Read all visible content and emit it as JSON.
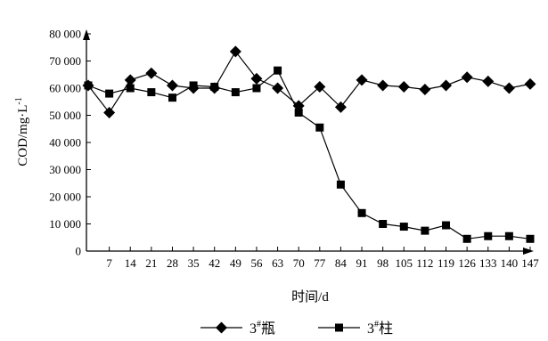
{
  "chart_data": {
    "type": "line",
    "title": "",
    "xlabel": "时间/d",
    "ylabel": "COD/mg·L",
    "ylabel_superscript": "-1",
    "ylim": [
      0,
      80000
    ],
    "yticks": [
      "0",
      "10 000",
      "20 000",
      "30 000",
      "40 000",
      "50 000",
      "60 000",
      "70 000",
      "80 000"
    ],
    "ytick_values": [
      0,
      10000,
      20000,
      30000,
      40000,
      50000,
      60000,
      70000,
      80000
    ],
    "x": [
      0,
      7,
      14,
      21,
      28,
      35,
      42,
      49,
      56,
      63,
      70,
      77,
      84,
      91,
      98,
      105,
      112,
      119,
      126,
      133,
      140,
      147
    ],
    "xtick_labels": [
      "7",
      "14",
      "21",
      "28",
      "35",
      "42",
      "49",
      "56",
      "63",
      "70",
      "77",
      "84",
      "91",
      "98",
      "105",
      "112",
      "119",
      "126",
      "133",
      "140",
      "147"
    ],
    "xtick_values": [
      7,
      14,
      21,
      28,
      35,
      42,
      49,
      56,
      63,
      70,
      77,
      84,
      91,
      98,
      105,
      112,
      119,
      126,
      133,
      140,
      147
    ],
    "xlim": [
      0,
      147
    ],
    "grid": false,
    "legend_position": "bottom-center",
    "series": [
      {
        "name": "3",
        "name_sup": "#",
        "name_suffix": "瓶",
        "marker": "diamond",
        "color": "#000000",
        "values": [
          61000,
          51000,
          63000,
          65500,
          61000,
          60000,
          60000,
          73500,
          63500,
          60000,
          53500,
          60500,
          53000,
          63000,
          61000,
          60500,
          59500,
          61000,
          64000,
          62500,
          60000,
          61500
        ]
      },
      {
        "name": "3",
        "name_sup": "#",
        "name_suffix": "柱",
        "marker": "square",
        "color": "#000000",
        "values": [
          61000,
          58000,
          60000,
          58500,
          56500,
          61000,
          60500,
          58500,
          60000,
          66500,
          51000,
          45500,
          24500,
          14000,
          10000,
          9000,
          7500,
          9500,
          4500,
          5500,
          5500,
          4500
        ]
      }
    ]
  }
}
